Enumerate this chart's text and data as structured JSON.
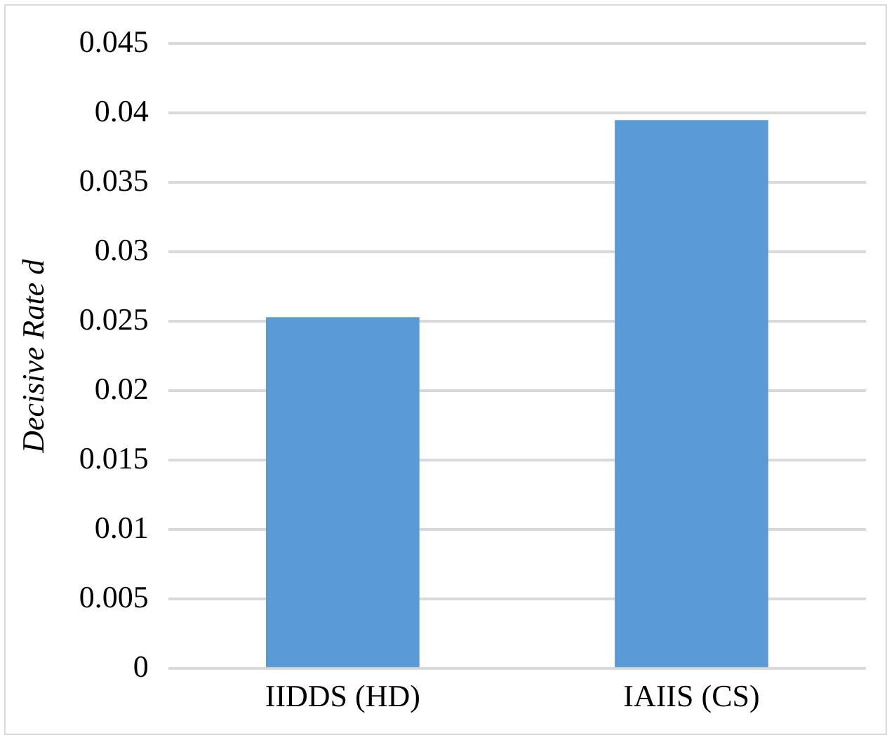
{
  "chart_data": {
    "type": "bar",
    "ylabel": "Decisive Rate d",
    "categories": [
      "IIDDS (HD)",
      "IAIIS (CS)"
    ],
    "values": [
      0.0253,
      0.0395
    ],
    "color": "#5b9bd5",
    "ylim": [
      0,
      0.045
    ],
    "yticks": [
      0,
      0.005,
      0.01,
      0.015,
      0.02,
      0.025,
      0.03,
      0.035,
      0.04,
      0.045
    ],
    "grid": "y",
    "legend": false
  }
}
